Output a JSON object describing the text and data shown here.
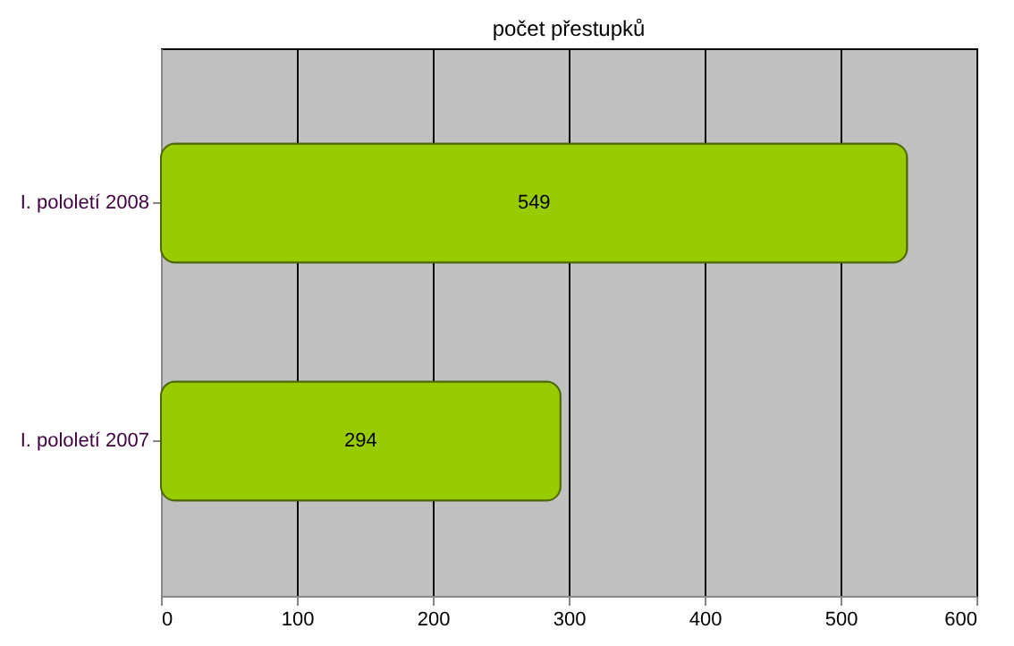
{
  "chart_data": {
    "type": "bar",
    "orientation": "horizontal",
    "title": "počet přestupků",
    "categories": [
      "I. pololetí 2008",
      "I. pololetí 2007"
    ],
    "values": [
      549,
      294
    ],
    "color": "#99cc00",
    "xlim": [
      0,
      600
    ],
    "xticks": [
      0,
      100,
      200,
      300,
      400,
      500,
      600
    ],
    "grid": "x",
    "data_labels": true
  }
}
